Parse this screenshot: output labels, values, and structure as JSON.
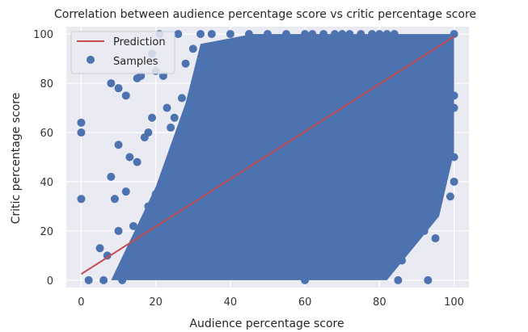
{
  "chart_data": {
    "type": "scatter",
    "title": "Correlation between audience percentage score vs critic percentage score",
    "xlabel": "Audience percentage score",
    "ylabel": "Critic percentage score",
    "xlim": [
      -4,
      104
    ],
    "ylim": [
      -3,
      103
    ],
    "xticks": [
      0,
      20,
      40,
      60,
      80,
      100
    ],
    "yticks": [
      0,
      20,
      40,
      60,
      80,
      100
    ],
    "xtick_labels": [
      "0",
      "20",
      "40",
      "60",
      "80",
      "100"
    ],
    "ytick_labels": [
      "0",
      "20",
      "40",
      "60",
      "80",
      "100"
    ],
    "grid": true,
    "legend_placement": "top-left",
    "colors": {
      "background": "#eaeaf2",
      "grid": "#ffffff",
      "samples": "#4c72b0",
      "prediction": "#c44e52"
    },
    "series": [
      {
        "name": "Prediction",
        "kind": "line",
        "x": [
          0,
          100
        ],
        "y": [
          2.5,
          99
        ]
      },
      {
        "name": "Samples",
        "kind": "scatter",
        "x": [
          0,
          0,
          0,
          2,
          5,
          6,
          7,
          8,
          8,
          9,
          10,
          10,
          11,
          12,
          12,
          13,
          14,
          15,
          16,
          18,
          19,
          20,
          21,
          22,
          24,
          25,
          26,
          28,
          30,
          32,
          35,
          40,
          45,
          50,
          55,
          60,
          62,
          65,
          68,
          70,
          72,
          75,
          78,
          80,
          82,
          84,
          85,
          86,
          88,
          90,
          92,
          93,
          94,
          95,
          96,
          97,
          98,
          99,
          100,
          100,
          100,
          100,
          100,
          99,
          98,
          97,
          95,
          96,
          93,
          90,
          88,
          85,
          80,
          78,
          75,
          70,
          65,
          60,
          55,
          50,
          45,
          40,
          35,
          30,
          25,
          20,
          15,
          10,
          90,
          94,
          96,
          92,
          87,
          83,
          76,
          72,
          66,
          58,
          52,
          48,
          42,
          38,
          33,
          28,
          22,
          18,
          14,
          17,
          19,
          23,
          27,
          31,
          36,
          44,
          56,
          64,
          74,
          82,
          89
        ],
        "y": [
          33,
          60,
          64,
          0,
          13,
          0,
          10,
          42,
          80,
          33,
          20,
          78,
          0,
          75,
          36,
          50,
          12,
          82,
          83,
          60,
          92,
          85,
          100,
          83,
          62,
          66,
          100,
          88,
          94,
          100,
          100,
          100,
          100,
          100,
          100,
          100,
          100,
          100,
          100,
          100,
          100,
          100,
          100,
          100,
          100,
          100,
          0,
          8,
          18,
          25,
          20,
          0,
          32,
          17,
          48,
          40,
          62,
          70,
          100,
          75,
          70,
          50,
          40,
          34,
          76,
          66,
          83,
          71,
          90,
          98,
          95,
          90,
          10,
          5,
          15,
          8,
          20,
          0,
          2,
          6,
          4,
          10,
          12,
          20,
          30,
          35,
          48,
          55,
          40,
          55,
          62,
          30,
          24,
          45,
          38,
          56,
          42,
          50,
          33,
          60,
          47,
          55,
          44,
          52,
          40,
          30,
          22,
          58,
          66,
          70,
          74,
          80,
          85,
          88,
          90,
          86,
          80,
          78,
          70
        ]
      }
    ]
  }
}
